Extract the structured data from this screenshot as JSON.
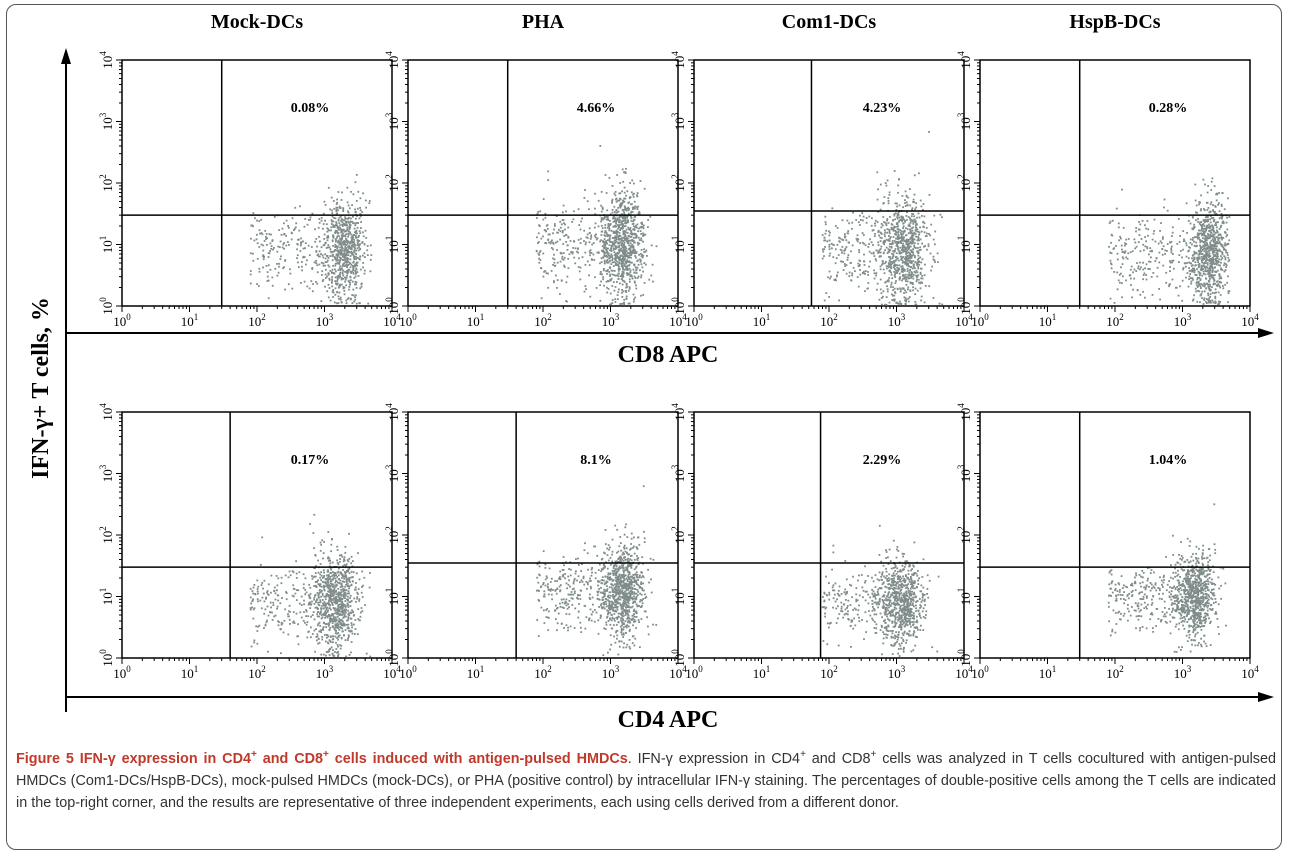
{
  "caption": {
    "title_prefix": "Figure 5 IFN-γ expression in CD4",
    "sup_plus": "+",
    "title_mid": " and CD8",
    "title_suffix": " cells induced with antigen-pulsed HMDCs",
    "body_lead": ". IFN-γ expression in CD4",
    "body_mid": " and CD8",
    "body_rest": " cells was analyzed in T cells cocultured with antigen-pulsed HMDCs (Com1-DCs/HspB-DCs), mock-pulsed HMDCs (mock-DCs), or PHA (positive control) by intracellular IFN-γ staining. The percentages of double-positive cells among the T cells are indicated in the top-right corner, and the results are representative of three independent experiments, each using cells derived from a different donor."
  },
  "colors": {
    "dots": "#7f8c8a",
    "axis": "#000000"
  },
  "chart_data": {
    "type": "scatter",
    "y_axis_label": "IFN-γ+ T cells, %",
    "columns": [
      "Mock-DCs",
      "PHA",
      "Com1-DCs",
      "HspB-DCs"
    ],
    "rows": [
      {
        "x_axis_label": "CD8 APC",
        "percentages": [
          "0.08%",
          "4.66%",
          "4.23%",
          "0.28%"
        ]
      },
      {
        "x_axis_label": "CD4 APC",
        "percentages": [
          "0.17%",
          "8.1%",
          "2.29%",
          "1.04%"
        ]
      }
    ],
    "axis_scale": "log",
    "axis_range": [
      1,
      10000
    ],
    "tick_labels": [
      {
        "base": "10",
        "exp": "0"
      },
      {
        "base": "10",
        "exp": "1"
      },
      {
        "base": "10",
        "exp": "2"
      },
      {
        "base": "10",
        "exp": "3"
      },
      {
        "base": "10",
        "exp": "4"
      }
    ],
    "gates": [
      [
        {
          "x": 30,
          "y": 30
        },
        {
          "x": 30,
          "y": 30
        },
        {
          "x": 55,
          "y": 35
        },
        {
          "x": 30,
          "y": 30
        }
      ],
      [
        {
          "x": 40,
          "y": 30
        },
        {
          "x": 40,
          "y": 35
        },
        {
          "x": 75,
          "y": 35
        },
        {
          "x": 30,
          "y": 30
        }
      ]
    ],
    "populations": [
      [
        {
          "x_center": 2000,
          "y_center": 8,
          "spread_x": 0.28,
          "spread_y": 0.4,
          "n": 900
        },
        {
          "x_center": 1500,
          "y_center": 10,
          "spread_x": 0.3,
          "spread_y": 0.45,
          "n": 1100
        },
        {
          "x_center": 1300,
          "y_center": 8,
          "spread_x": 0.35,
          "spread_y": 0.45,
          "n": 1000
        },
        {
          "x_center": 2500,
          "y_center": 7,
          "spread_x": 0.25,
          "spread_y": 0.45,
          "n": 1000
        }
      ],
      [
        {
          "x_center": 1500,
          "y_center": 8,
          "spread_x": 0.3,
          "spread_y": 0.4,
          "n": 1000
        },
        {
          "x_center": 1500,
          "y_center": 12,
          "spread_x": 0.3,
          "spread_y": 0.4,
          "n": 1100
        },
        {
          "x_center": 1200,
          "y_center": 8,
          "spread_x": 0.3,
          "spread_y": 0.35,
          "n": 900
        },
        {
          "x_center": 1500,
          "y_center": 10,
          "spread_x": 0.28,
          "spread_y": 0.35,
          "n": 1000
        }
      ]
    ]
  }
}
